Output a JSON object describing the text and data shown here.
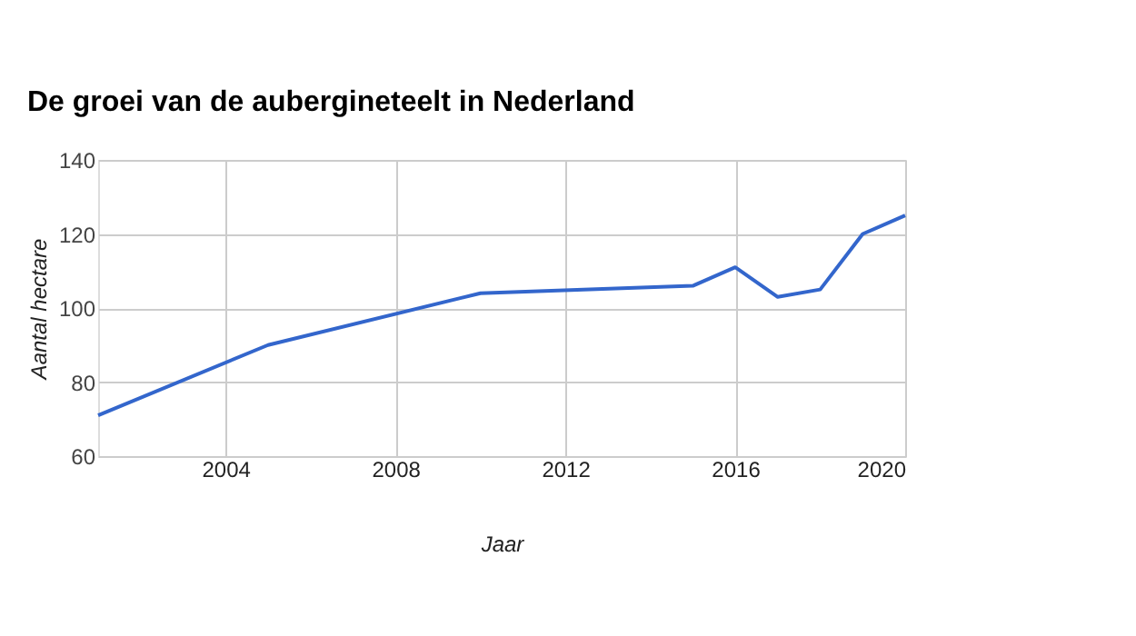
{
  "chart_data": {
    "type": "line",
    "title": "De groei van de aubergineteelt in Nederland",
    "xlabel": "Jaar",
    "ylabel": "Aantal hectare",
    "x": [
      2001,
      2005,
      2010,
      2015,
      2016,
      2017,
      2018,
      2019,
      2020
    ],
    "series": [
      {
        "color": "#3366cc",
        "values": [
          71,
          90,
          104,
          106,
          111,
          103,
          105,
          120,
          125
        ]
      }
    ],
    "xlim": [
      2001,
      2020
    ],
    "xticks": [
      2004,
      2008,
      2012,
      2016,
      2020
    ],
    "ylim": [
      60,
      140
    ],
    "yticks": [
      60,
      80,
      100,
      120,
      140
    ],
    "grid": true,
    "marker": "none",
    "line_style": "solid"
  }
}
